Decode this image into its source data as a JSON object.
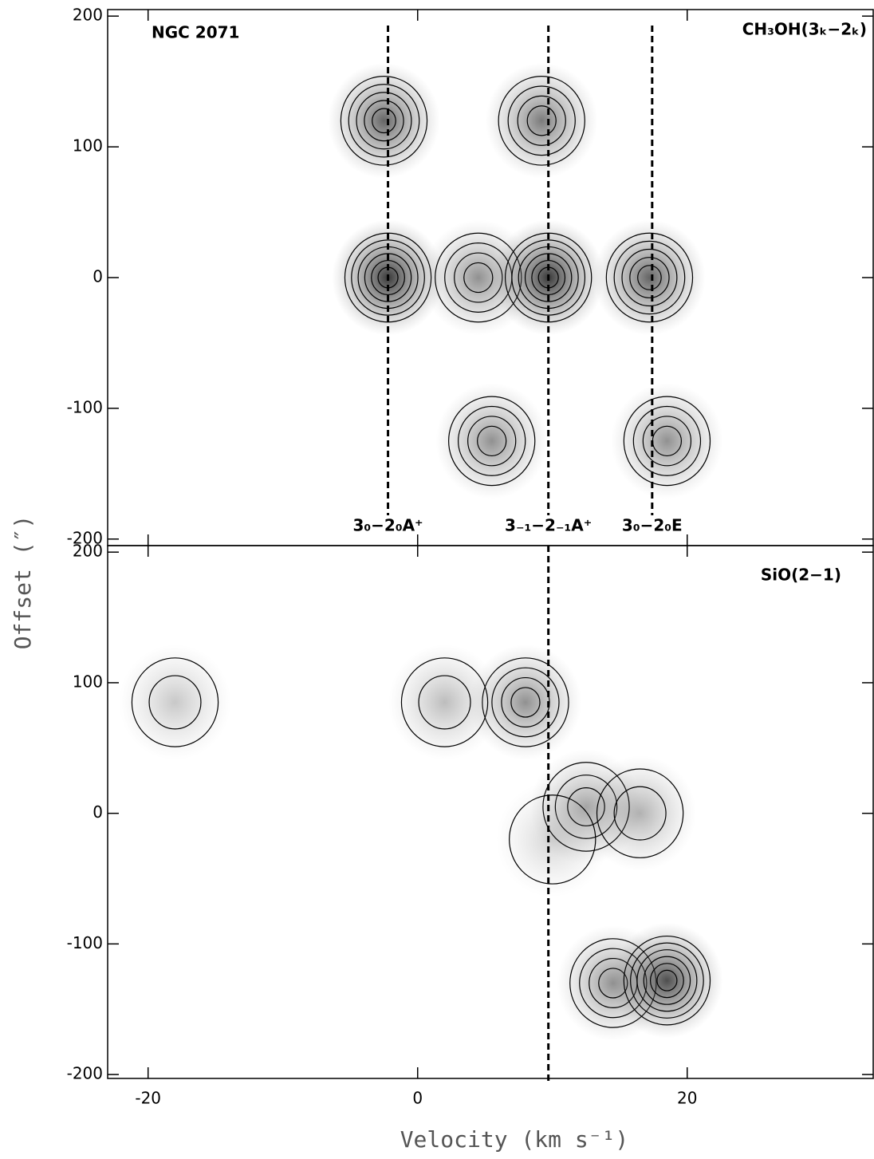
{
  "chart_data": [
    {
      "type": "contour",
      "title": "NGC 2071",
      "subtitle": "CH₃OH(3ₖ−2ₖ)",
      "ylabel": "Offset (″)",
      "xlim": [
        -23,
        33.8
      ],
      "ylim": [
        -205,
        205
      ],
      "xticks": [
        -20,
        0,
        20
      ],
      "yticks": [
        -200,
        -100,
        0,
        100,
        200
      ],
      "show_xtick_labels": false,
      "lines": [
        {
          "label": "3₀−2₀A⁺",
          "x": -2.2
        },
        {
          "label": "3₋₁−2₋₁A⁺",
          "x": 9.7
        },
        {
          "label": "3₀−2₀E",
          "x": 17.4
        }
      ],
      "x": [
        -2.2,
        4.5,
        9.7,
        17.2,
        5.5,
        18.5,
        -2.5,
        9.2
      ],
      "y": [
        0,
        0,
        0,
        0,
        -125,
        -125,
        120,
        120
      ],
      "values": [
        0.9,
        0.5,
        0.9,
        0.7,
        0.5,
        0.5,
        0.7,
        0.6
      ]
    },
    {
      "type": "contour",
      "title": "SiO(2−1)",
      "xlabel": "Velocity (km s⁻¹)",
      "xlim": [
        -23,
        33.8
      ],
      "ylim": [
        -203,
        205
      ],
      "xticks": [
        -20,
        0,
        20
      ],
      "yticks": [
        -200,
        -100,
        0,
        100,
        200
      ],
      "show_xtick_labels": true,
      "vlines": [
        9.7
      ],
      "x": [
        8,
        -18,
        2,
        12.5,
        16.5,
        14.5,
        18.5,
        10
      ],
      "y": [
        85,
        85,
        85,
        5,
        0,
        -130,
        -128,
        -20
      ],
      "values": [
        0.5,
        0.25,
        0.3,
        0.4,
        0.35,
        0.5,
        0.8,
        0.2
      ]
    }
  ]
}
